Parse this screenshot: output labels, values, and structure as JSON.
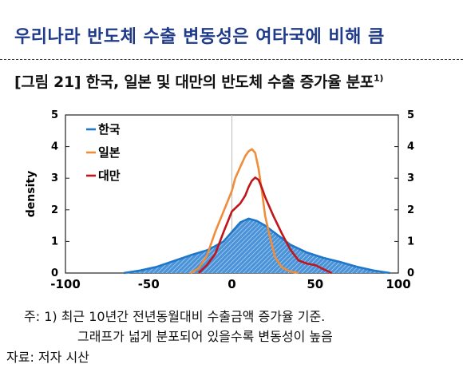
{
  "headline": "우리나라 반도체 수출 변동성은 여타국에 비해 큼",
  "figure": {
    "title": "[그림 21] 한국, 일본 및 대만의 반도체 수출 증가율 분포",
    "title_sup": "1)"
  },
  "notes": {
    "line1": "주: 1) 최근 10년간 전년동월대비 수출금액 증가율 기준.",
    "line2": "그래프가 넓게 분포되어 있을수록 변동성이 높음",
    "source": "자료: 저자 시산"
  },
  "chart_data": {
    "type": "area",
    "ylabel": "density",
    "xlim": [
      -100,
      100
    ],
    "ylim": [
      0,
      5
    ],
    "xticks": [
      -100,
      -50,
      0,
      50,
      100
    ],
    "yticks": [
      0,
      1,
      2,
      3,
      4,
      5
    ],
    "legend_position": "top-left",
    "series": [
      {
        "name": "한국",
        "color": "#1f77c9",
        "x": [
          -65,
          -55,
          -45,
          -35,
          -25,
          -15,
          -10,
          -5,
          0,
          5,
          10,
          15,
          20,
          25,
          30,
          35,
          45,
          55,
          65,
          75,
          85,
          95
        ],
        "y": [
          0.0,
          0.08,
          0.2,
          0.38,
          0.56,
          0.72,
          0.85,
          1.0,
          1.3,
          1.6,
          1.72,
          1.65,
          1.5,
          1.3,
          1.1,
          0.9,
          0.65,
          0.48,
          0.35,
          0.2,
          0.08,
          0.0
        ]
      },
      {
        "name": "일본",
        "color": "#ef8d3a",
        "x": [
          -25,
          -20,
          -15,
          -10,
          -5,
          0,
          2,
          5,
          8,
          10,
          12,
          14,
          16,
          18,
          20,
          23,
          26,
          30,
          35,
          40
        ],
        "y": [
          0.0,
          0.15,
          0.55,
          1.3,
          1.95,
          2.6,
          3.0,
          3.35,
          3.7,
          3.85,
          3.92,
          3.8,
          3.3,
          2.6,
          1.8,
          1.1,
          0.5,
          0.18,
          0.05,
          0.0
        ]
      },
      {
        "name": "대만",
        "color": "#c0151b",
        "x": [
          -20,
          -15,
          -10,
          -5,
          0,
          5,
          8,
          10,
          12,
          14,
          16,
          18,
          20,
          25,
          30,
          35,
          40,
          45,
          50,
          55,
          60
        ],
        "y": [
          0.0,
          0.25,
          0.6,
          1.3,
          1.95,
          2.2,
          2.45,
          2.72,
          2.92,
          3.02,
          2.95,
          2.7,
          2.4,
          1.8,
          1.25,
          0.75,
          0.4,
          0.3,
          0.25,
          0.12,
          0.0
        ]
      }
    ]
  }
}
